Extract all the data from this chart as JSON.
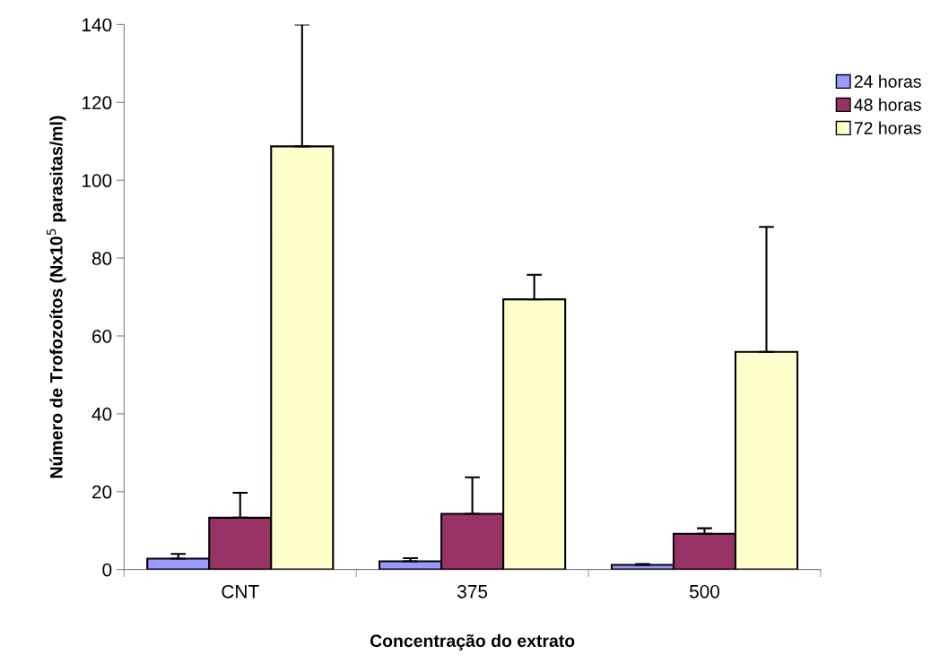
{
  "chart_data": {
    "type": "bar",
    "xlabel": "Concentração do extrato",
    "ylabel": "Número de Trofozoítos (Nx10$^{5}$ parasitas/ml)",
    "categories": [
      "CNT",
      "375",
      "500"
    ],
    "series": [
      {
        "name": "24 horas",
        "color": "#9999ff",
        "values": [
          2.8,
          2.1,
          1.2
        ],
        "errors": [
          [
            2.8,
            4.0
          ],
          [
            2.1,
            2.9
          ],
          [
            1.2,
            1.4
          ]
        ]
      },
      {
        "name": "48 horas",
        "color": "#993366",
        "values": [
          13.3,
          14.3,
          9.2
        ],
        "errors": [
          [
            13.3,
            19.7
          ],
          [
            14.3,
            23.7
          ],
          [
            9.2,
            10.6
          ]
        ]
      },
      {
        "name": "72 horas",
        "color": "#ffffcc",
        "values": [
          108.7,
          69.4,
          55.9
        ],
        "errors": [
          [
            108.7,
            140
          ],
          [
            69.4,
            75.7
          ],
          [
            55.9,
            88.0
          ]
        ]
      }
    ],
    "ylim": [
      0,
      140
    ],
    "yticks": [
      0,
      20,
      40,
      60,
      80,
      100,
      120,
      140
    ],
    "legend": "right",
    "grid": false
  }
}
